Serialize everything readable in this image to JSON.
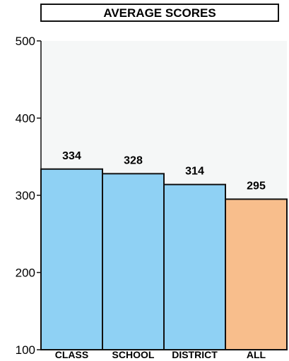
{
  "chart_data": {
    "type": "bar",
    "title": "AVERAGE SCORES",
    "categories": [
      "CLASS",
      "SCHOOL",
      "DISTRICT",
      "ALL"
    ],
    "values": [
      334,
      328,
      314,
      295
    ],
    "data_labels": [
      "334",
      "328",
      "314",
      "295"
    ],
    "colors": [
      "#8fd1f4",
      "#8fd1f4",
      "#8fd1f4",
      "#f8be8c"
    ],
    "ylim": [
      100,
      500
    ],
    "yticks": [
      100,
      200,
      300,
      400,
      500
    ],
    "ytick_labels": [
      "100",
      "200",
      "300",
      "400",
      "500"
    ],
    "grid": false,
    "plot_background": "#f5f7f7",
    "bar_border": "#111111"
  }
}
